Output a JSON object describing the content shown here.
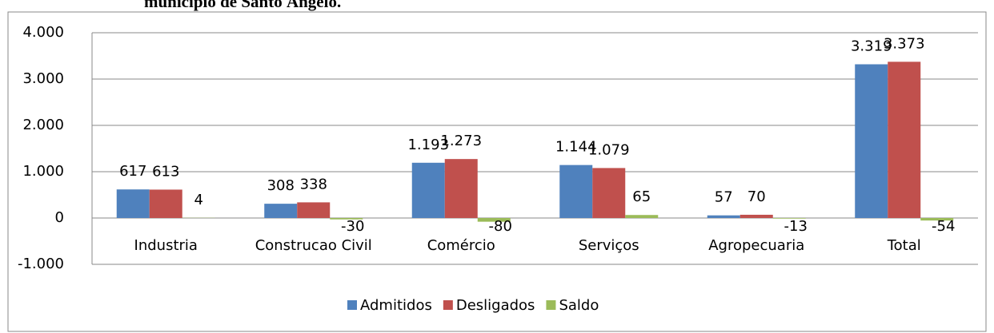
{
  "chart_data": {
    "type": "bar",
    "title": "município de Santo Ângelo.",
    "categories": [
      "Industria",
      "Construcao Civil",
      "Comércio",
      "Serviços",
      "Agropecuaria",
      "Total"
    ],
    "series": [
      {
        "name": "Admitidos",
        "color": "#4f81bd",
        "values": [
          617,
          308,
          1193,
          1144,
          57,
          3319
        ],
        "value_labels": [
          "617",
          "308",
          "1.193",
          "1.144",
          "57",
          "3.319"
        ]
      },
      {
        "name": "Desligados",
        "color": "#c0504d",
        "values": [
          613,
          338,
          1273,
          1079,
          70,
          3373
        ],
        "value_labels": [
          "613",
          "338",
          "1.273",
          "1.079",
          "70",
          "3.373"
        ]
      },
      {
        "name": "Saldo",
        "color": "#9bbb59",
        "values": [
          4,
          -30,
          -80,
          65,
          -13,
          -54
        ],
        "value_labels": [
          "4",
          "-30",
          "-80",
          "65",
          "-13",
          "-54"
        ]
      }
    ],
    "ylim": [
      -1000,
      4000
    ],
    "yticks": [
      {
        "value": -1000,
        "label": "-1.000"
      },
      0,
      {
        "value": 1000,
        "label": "1.000"
      },
      {
        "value": 2000,
        "label": "2.000"
      },
      {
        "value": 3000,
        "label": "3.000"
      },
      {
        "value": 4000,
        "label": "4.000"
      }
    ],
    "grid": true,
    "legend": "bottom"
  }
}
